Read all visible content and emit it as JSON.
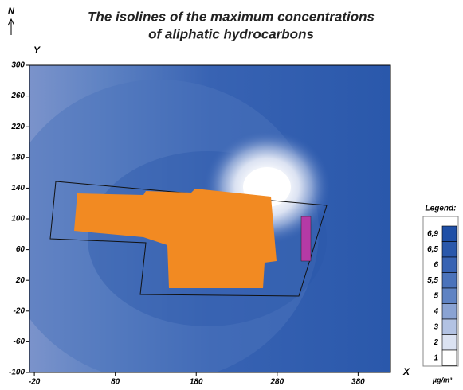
{
  "chart_data": {
    "type": "contour",
    "title": [
      "The isolines of the maximum concentrations",
      "of aliphatic hydrocarbons"
    ],
    "north_label": "N",
    "x_label": "X",
    "y_label": "Y",
    "xlim": [
      -26,
      420
    ],
    "ylim": [
      -100,
      300
    ],
    "xticks": [
      -20,
      80,
      180,
      280,
      380
    ],
    "yticks": [
      -100,
      -60,
      -20,
      20,
      60,
      100,
      140,
      180,
      220,
      260,
      300
    ],
    "legend": {
      "title": "Legend:",
      "unit": "µg/m³",
      "levels": [
        {
          "value": 6.9,
          "label": "6,9",
          "color": "#1f4fa6"
        },
        {
          "value": 6.5,
          "label": "6,5",
          "color": "#2a58ab"
        },
        {
          "value": 6,
          "label": "6",
          "color": "#3863b3"
        },
        {
          "value": 5.5,
          "label": "5,5",
          "color": "#4b73bb"
        },
        {
          "value": 5,
          "label": "5",
          "color": "#5f83c3"
        },
        {
          "value": 4,
          "label": "4",
          "color": "#8aa3d3"
        },
        {
          "value": 3,
          "label": "3",
          "color": "#b2c2e3"
        },
        {
          "value": 2,
          "label": "2",
          "color": "#dbe2f2"
        },
        {
          "value": 1,
          "label": "1",
          "color": "#ffffff"
        }
      ]
    }
  }
}
